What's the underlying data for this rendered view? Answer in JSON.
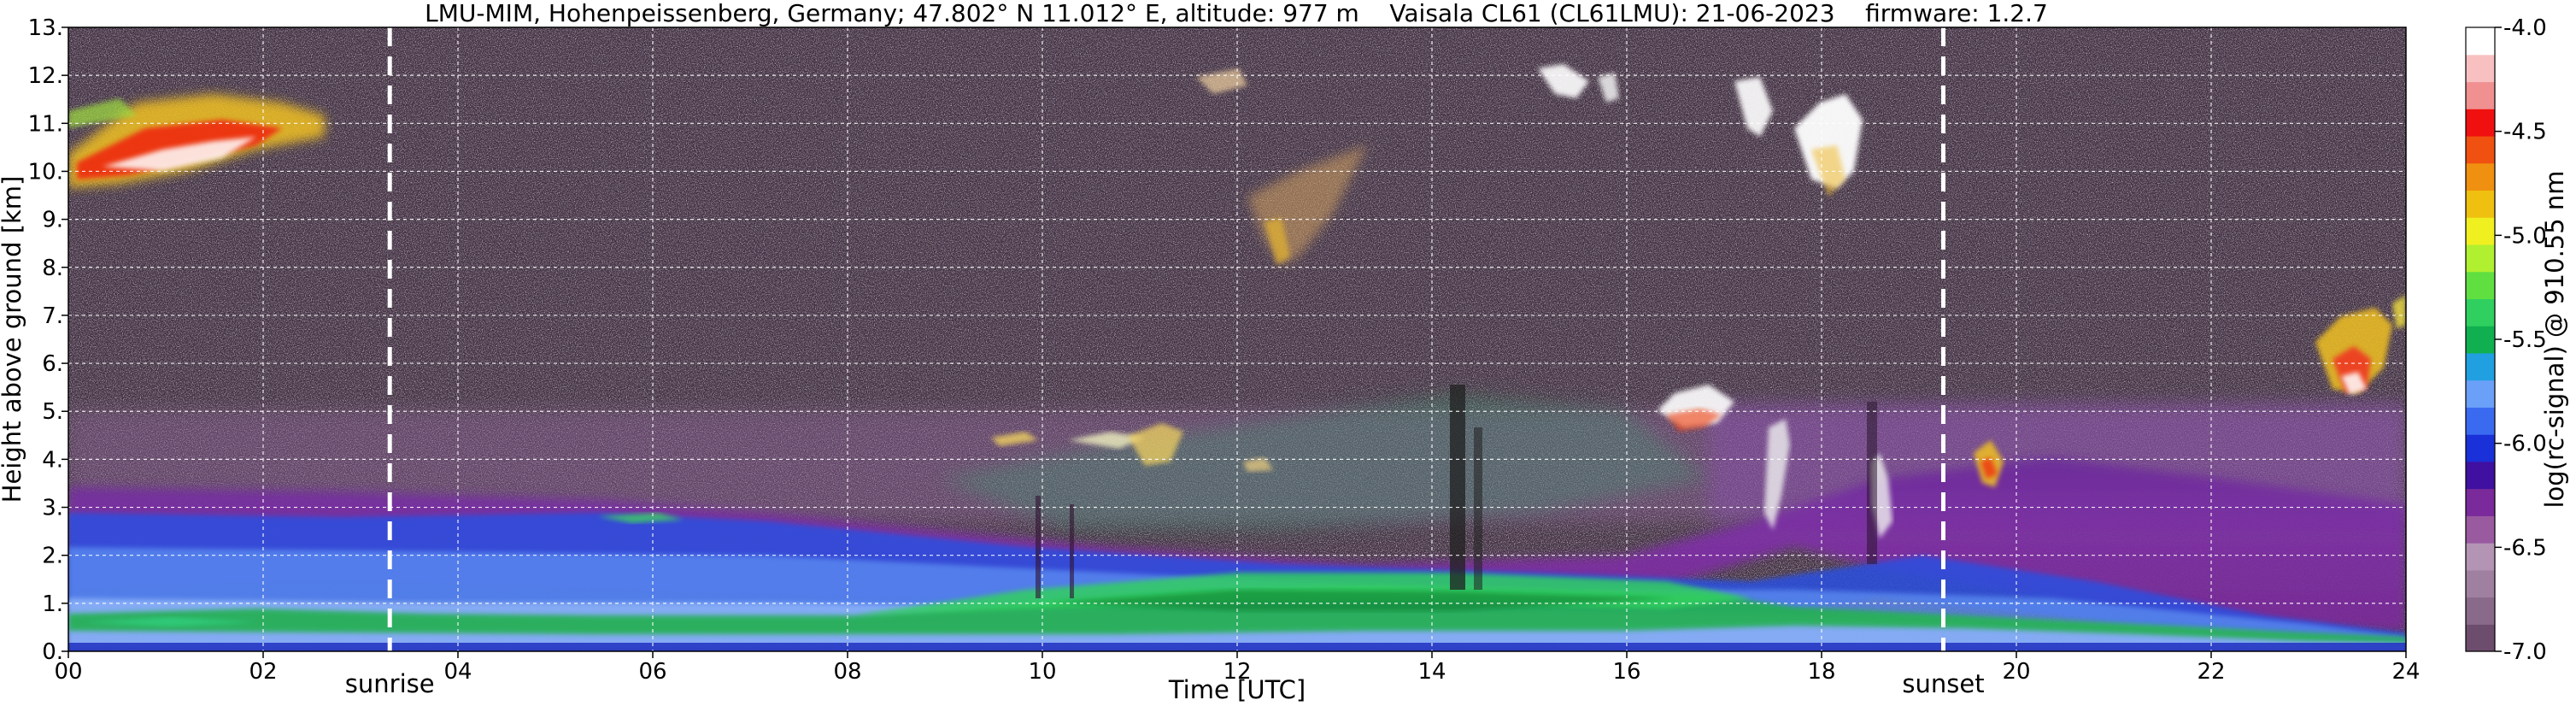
{
  "chart_data": {
    "type": "heatmap",
    "title": "LMU-MIM, Hohenpeissenberg, Germany; 47.802° N 11.012° E, altitude: 977 m    Vaisala CL61 (CL61LMU): 21-06-2023    firmware: 1.2.7",
    "xlabel": "Time [UTC]",
    "ylabel": "Height above ground [km]",
    "xlim": [
      0,
      24
    ],
    "ylim": [
      0,
      13
    ],
    "x_ticks": [
      0,
      2,
      4,
      6,
      8,
      10,
      12,
      14,
      16,
      18,
      20,
      22,
      24
    ],
    "x_tick_labels": [
      "00",
      "02",
      "04",
      "06",
      "08",
      "10",
      "12",
      "14",
      "16",
      "18",
      "20",
      "22",
      "24"
    ],
    "y_ticks": [
      0,
      1,
      2,
      3,
      4,
      5,
      6,
      7,
      8,
      9,
      10,
      11,
      12,
      13
    ],
    "y_tick_labels": [
      "0.",
      "1.",
      "2.",
      "3.",
      "4.",
      "5.",
      "6.",
      "7.",
      "8.",
      "9.",
      "10.",
      "11.",
      "12.",
      "13."
    ],
    "grid": true,
    "markers": [
      {
        "label": "sunrise",
        "x": 3.3
      },
      {
        "label": "sunset",
        "x": 19.25
      }
    ],
    "colorbar": {
      "label": "log(rc-signal) @ 910.55 nm",
      "range": [
        -7.0,
        -4.0
      ],
      "ticks": [
        -7.0,
        -6.5,
        -6.0,
        -5.5,
        -5.0,
        -4.5,
        -4.0
      ],
      "tick_labels": [
        "-7.0",
        "-6.5",
        "-6.0",
        "-5.5",
        "-5.0",
        "-4.5",
        "-4.0"
      ],
      "colors": [
        "#6d4d6d",
        "#8a6a8a",
        "#a080a0",
        "#b494b4",
        "#9a5aa0",
        "#7a2a9a",
        "#4010a0",
        "#1a30d8",
        "#3a6af0",
        "#6aa0f8",
        "#20a0e0",
        "#10b050",
        "#30d060",
        "#60e040",
        "#b0f030",
        "#f0f020",
        "#f0c010",
        "#f09010",
        "#f05010",
        "#f01010",
        "#f09090",
        "#f8c0c0",
        "#ffffff"
      ]
    }
  }
}
